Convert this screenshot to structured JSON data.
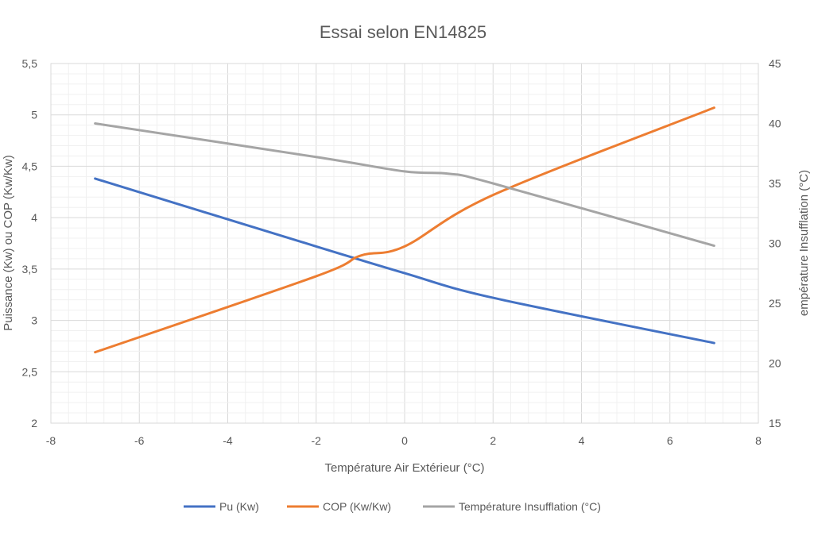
{
  "chart_data": {
    "type": "line",
    "title": "Essai selon EN14825",
    "xlabel": "Température Air Extérieur (°C)",
    "ylabel": "Puissance (Kw) ou COP (Kw/Kw)",
    "y2label": "empérature Insufflation (°C)",
    "xlim": [
      -8,
      8
    ],
    "ylim": [
      2,
      5.5
    ],
    "y2lim": [
      15,
      45
    ],
    "x_ticks": [
      "-8",
      "-6",
      "-4",
      "-2",
      "0",
      "2",
      "4",
      "6",
      "8"
    ],
    "y_ticks": [
      "2",
      "2,5",
      "3",
      "3,5",
      "4",
      "4,5",
      "5",
      "5,5"
    ],
    "y2_ticks": [
      "15",
      "20",
      "25",
      "30",
      "35",
      "40",
      "45"
    ],
    "grid": true,
    "legend_position": "bottom",
    "series": [
      {
        "name": "Pu (Kw)",
        "axis": "left",
        "color": "#4472c4",
        "x": [
          -7,
          -2,
          0,
          2,
          7
        ],
        "y": [
          4.38,
          3.72,
          3.46,
          3.22,
          2.78
        ]
      },
      {
        "name": "COP (Kw/Kw)",
        "axis": "left",
        "color": "#ed7d31",
        "x": [
          -7,
          -2,
          -1,
          0,
          2,
          7
        ],
        "y": [
          2.69,
          3.43,
          3.63,
          3.72,
          4.22,
          5.07
        ]
      },
      {
        "name": "Température Insufflation (°C)",
        "axis": "right",
        "color": "#a5a5a5",
        "x": [
          -7,
          -2,
          0,
          1,
          2,
          7
        ],
        "y": [
          40,
          37.2,
          36,
          35.8,
          35,
          29.8
        ]
      }
    ]
  }
}
